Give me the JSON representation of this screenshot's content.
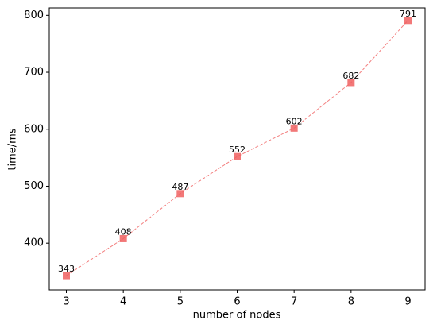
{
  "chart_data": {
    "type": "line",
    "xlabel": "number of nodes",
    "ylabel": "time/ms",
    "x": [
      3,
      4,
      5,
      6,
      7,
      8,
      9
    ],
    "values": [
      343,
      408,
      487,
      552,
      602,
      682,
      791
    ],
    "color": "#f06060",
    "xlim": [
      2.7,
      9.3
    ],
    "ylim": [
      318,
      813
    ],
    "xticks": [
      3,
      4,
      5,
      6,
      7,
      8,
      9
    ],
    "yticks": [
      400,
      500,
      600,
      700,
      800
    ]
  }
}
